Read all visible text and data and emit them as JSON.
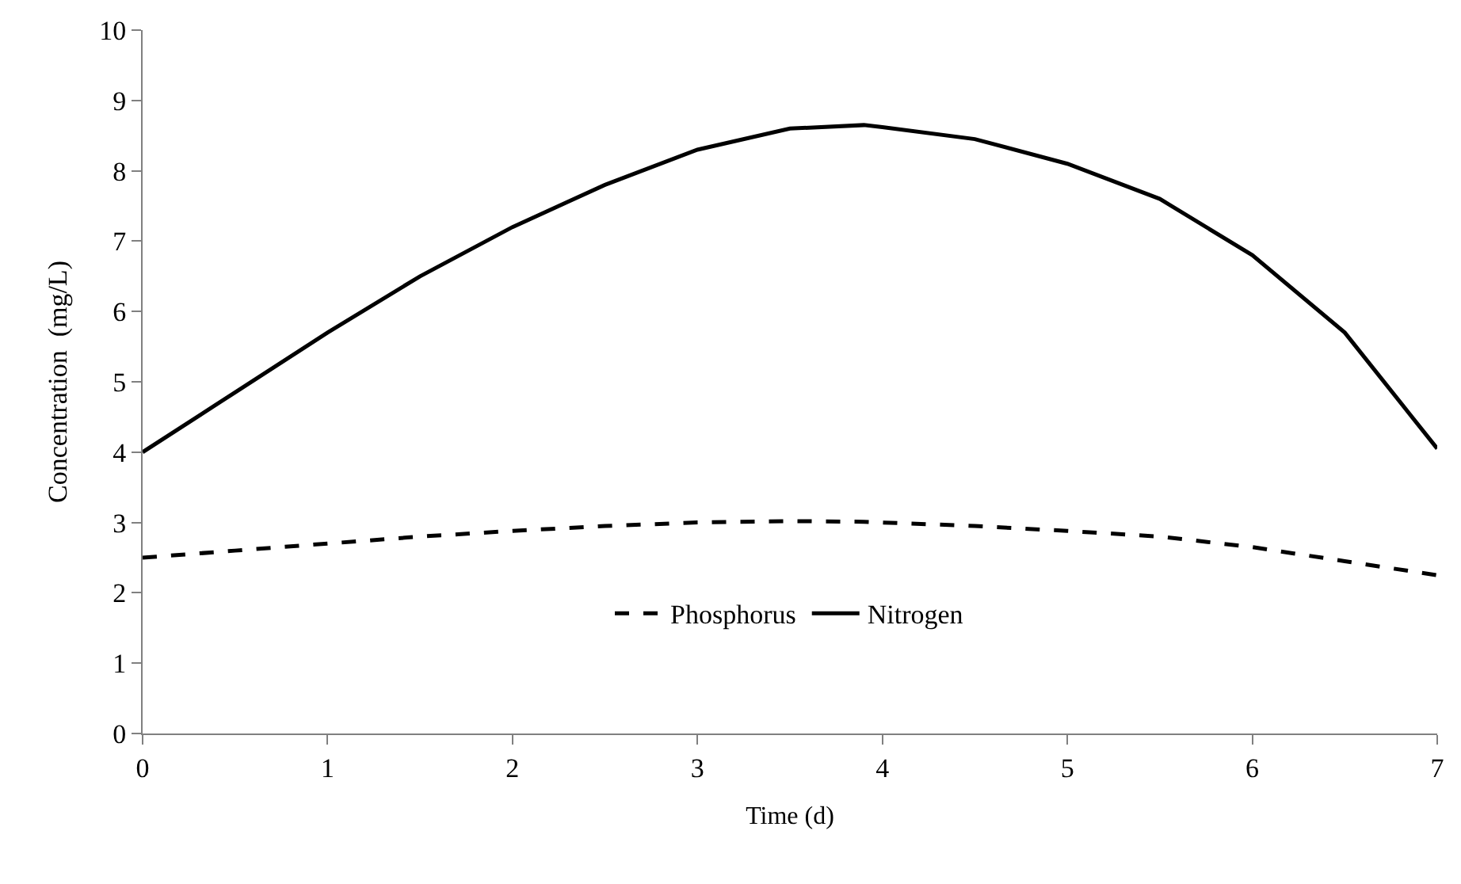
{
  "chart_data": {
    "type": "line",
    "xlabel": "Time (d)",
    "ylabel": "Concentration  (mg/L)",
    "xlim": [
      0,
      7
    ],
    "xticks": [
      0,
      1,
      2,
      3,
      4,
      5,
      6,
      7
    ],
    "ylim": [
      0,
      10
    ],
    "yticks": [
      0,
      1,
      2,
      3,
      4,
      5,
      6,
      7,
      8,
      9,
      10
    ],
    "x": [
      0,
      0.5,
      1,
      1.5,
      2,
      2.5,
      3,
      3.5,
      3.9,
      4,
      4.5,
      5,
      5.5,
      6,
      6.5,
      7
    ],
    "series": [
      {
        "name": "Phosphorus",
        "color": "#000000",
        "line_style": "dashed",
        "values": [
          2.5,
          2.6,
          2.7,
          2.8,
          2.88,
          2.95,
          3.0,
          3.02,
          3.01,
          3.0,
          2.95,
          2.88,
          2.8,
          2.65,
          2.45,
          2.25
        ]
      },
      {
        "name": "Nitrogen",
        "color": "#000000",
        "line_style": "solid",
        "values": [
          4.0,
          4.85,
          5.7,
          6.5,
          7.2,
          7.8,
          8.3,
          8.6,
          8.65,
          8.62,
          8.45,
          8.1,
          7.6,
          6.8,
          5.7,
          4.05
        ]
      }
    ],
    "legend": "bottom",
    "marker": "none"
  }
}
